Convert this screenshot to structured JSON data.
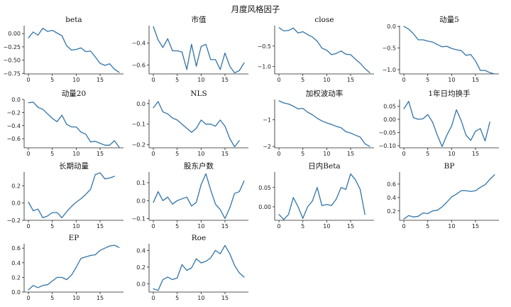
{
  "figure": {
    "title": "月度风格因子",
    "line_color": "#3274a8"
  },
  "chart_data": [
    {
      "type": "line",
      "title": "beta",
      "x": [
        0,
        1,
        2,
        3,
        4,
        5,
        6,
        7,
        8,
        9,
        10,
        11,
        12,
        13,
        14,
        15,
        16,
        17,
        18,
        19
      ],
      "values": [
        -0.08,
        0.03,
        -0.03,
        0.1,
        0.04,
        0.06,
        0.01,
        -0.04,
        -0.23,
        -0.31,
        -0.3,
        -0.27,
        -0.34,
        -0.33,
        -0.44,
        -0.56,
        -0.6,
        -0.57,
        -0.67,
        -0.73
      ],
      "ylim": [
        -0.76,
        0.15
      ],
      "yticks": [
        -0.75,
        -0.5,
        -0.25,
        0.0
      ],
      "ytick_labels": [
        "−0.75",
        "−0.50",
        "−0.25",
        "0.00"
      ],
      "xticks": [
        0,
        5,
        10,
        15
      ]
    },
    {
      "type": "line",
      "title": "市值",
      "x": [
        0,
        1,
        2,
        3,
        4,
        5,
        6,
        7,
        8,
        9,
        10,
        11,
        12,
        13,
        14,
        15,
        16,
        17,
        18,
        19
      ],
      "values": [
        -0.25,
        -0.37,
        -0.44,
        -0.36,
        -0.47,
        -0.47,
        -0.48,
        -0.64,
        -0.41,
        -0.61,
        -0.43,
        -0.41,
        -0.55,
        -0.55,
        -0.64,
        -0.49,
        -0.61,
        -0.67,
        -0.65,
        -0.58
      ],
      "ylim": [
        -0.68,
        -0.24
      ],
      "yticks": [
        -0.6,
        -0.4
      ],
      "ytick_labels": [
        "−0.6",
        "−0.4"
      ],
      "xticks": [
        0,
        5,
        10,
        15
      ]
    },
    {
      "type": "line",
      "title": "close",
      "x": [
        0,
        1,
        2,
        3,
        4,
        5,
        6,
        7,
        8,
        9,
        10,
        11,
        12,
        13,
        14,
        15,
        16,
        17,
        18,
        19
      ],
      "values": [
        -0.05,
        -0.13,
        -0.12,
        -0.06,
        -0.18,
        -0.15,
        -0.22,
        -0.28,
        -0.38,
        -0.55,
        -0.6,
        -0.71,
        -0.68,
        -0.62,
        -0.7,
        -0.71,
        -0.82,
        -0.92,
        -1.05,
        -1.15
      ],
      "ylim": [
        -1.18,
        0.0
      ],
      "yticks": [
        -1.0,
        -0.5
      ],
      "ytick_labels": [
        "−1.0",
        "−0.5"
      ],
      "xticks": [
        0,
        5,
        10,
        15
      ]
    },
    {
      "type": "line",
      "title": "动量5",
      "x": [
        0,
        1,
        2,
        3,
        4,
        5,
        6,
        7,
        8,
        9,
        10,
        11,
        12,
        13,
        14,
        15,
        16,
        17,
        18,
        19
      ],
      "values": [
        0.0,
        -0.06,
        -0.17,
        -0.31,
        -0.31,
        -0.34,
        -0.36,
        -0.42,
        -0.47,
        -0.46,
        -0.51,
        -0.54,
        -0.56,
        -0.67,
        -0.65,
        -0.8,
        -1.02,
        -1.02,
        -1.07,
        -1.1
      ],
      "ylim": [
        -1.1,
        0.02
      ],
      "yticks": [
        -1.0,
        -0.5,
        0.0
      ],
      "ytick_labels": [
        "−1.0",
        "−0.5",
        "0.0"
      ],
      "xticks": [
        0,
        5,
        10,
        15
      ]
    },
    {
      "type": "line",
      "title": "动量20",
      "x": [
        0,
        1,
        2,
        3,
        4,
        5,
        6,
        7,
        8,
        9,
        10,
        11,
        12,
        13,
        14,
        15,
        16,
        17,
        18,
        19
      ],
      "values": [
        -0.05,
        -0.04,
        -0.12,
        -0.15,
        -0.22,
        -0.29,
        -0.34,
        -0.24,
        -0.38,
        -0.42,
        -0.42,
        -0.5,
        -0.53,
        -0.65,
        -0.64,
        -0.67,
        -0.7,
        -0.7,
        -0.63,
        -0.73
      ],
      "ylim": [
        -0.74,
        0.0
      ],
      "yticks": [
        -0.6,
        -0.4,
        -0.2,
        0.0
      ],
      "ytick_labels": [
        "−0.6",
        "−0.4",
        "−0.2",
        "0.0"
      ],
      "xticks": [
        0,
        5,
        10,
        15
      ]
    },
    {
      "type": "line",
      "title": "NLS",
      "x": [
        0,
        1,
        2,
        3,
        4,
        5,
        6,
        7,
        8,
        9,
        10,
        11,
        12,
        13,
        14,
        15,
        16,
        17,
        18,
        19
      ],
      "values": [
        -0.02,
        0.01,
        -0.04,
        -0.05,
        -0.07,
        -0.08,
        -0.1,
        -0.12,
        -0.14,
        -0.12,
        -0.08,
        -0.1,
        -0.1,
        -0.11,
        -0.08,
        -0.11,
        -0.17,
        -0.21,
        -0.18,
        null
      ],
      "ylim": [
        -0.215,
        0.02
      ],
      "yticks": [
        -0.2,
        -0.1,
        0.0
      ],
      "ytick_labels": [
        "−0.2",
        "−0.1",
        "0.0"
      ],
      "xticks": [
        0,
        5,
        10,
        15
      ]
    },
    {
      "type": "line",
      "title": "加权波动率",
      "x": [
        0,
        1,
        2,
        3,
        4,
        5,
        6,
        7,
        8,
        9,
        10,
        11,
        12,
        13,
        14,
        15,
        16,
        17,
        18,
        19
      ],
      "values": [
        -0.3,
        -0.38,
        -0.42,
        -0.5,
        -0.6,
        -0.58,
        -0.72,
        -0.82,
        -0.95,
        -1.05,
        -1.12,
        -1.18,
        -1.25,
        -1.3,
        -1.45,
        -1.5,
        -1.58,
        -1.65,
        -1.9,
        -2.0
      ],
      "ylim": [
        -2.05,
        -0.25
      ],
      "yticks": [
        -2.0,
        -1.0
      ],
      "ytick_labels": [
        "−2",
        "−1"
      ],
      "xticks": [
        0,
        5,
        10,
        15
      ]
    },
    {
      "type": "line",
      "title": "1年日均换手",
      "x": [
        0,
        1,
        2,
        3,
        4,
        5,
        6,
        7,
        8,
        9,
        10,
        11,
        12,
        13,
        14,
        15,
        16,
        17,
        18,
        19
      ],
      "values": [
        0.04,
        0.068,
        0.006,
        0.0,
        0.002,
        0.018,
        -0.01,
        -0.06,
        -0.103,
        -0.06,
        -0.025,
        0.036,
        -0.005,
        -0.06,
        -0.08,
        -0.045,
        -0.035,
        -0.082,
        -0.01,
        null
      ],
      "ylim": [
        -0.108,
        0.075
      ],
      "yticks": [
        -0.1,
        -0.05,
        0.0,
        0.05
      ],
      "ytick_labels": [
        "−0.10",
        "−0.05",
        "0.00",
        "0.05"
      ],
      "xticks": [
        0,
        5,
        10,
        15
      ]
    },
    {
      "type": "line",
      "title": "长期动量",
      "x": [
        0,
        1,
        2,
        3,
        4,
        5,
        6,
        7,
        8,
        9,
        10,
        11,
        12,
        13,
        14,
        15,
        16,
        17,
        18,
        19
      ],
      "values": [
        0.01,
        -0.09,
        -0.07,
        -0.17,
        -0.15,
        -0.11,
        -0.11,
        -0.17,
        -0.1,
        -0.04,
        0.01,
        0.05,
        0.1,
        0.16,
        0.33,
        0.35,
        0.28,
        0.29,
        0.31,
        null
      ],
      "ylim": [
        -0.2,
        0.36
      ],
      "yticks": [
        -0.2,
        0.0,
        0.2
      ],
      "ytick_labels": [
        "−0.2",
        "0.0",
        "0.2"
      ],
      "xticks": [
        0,
        5,
        10,
        15
      ]
    },
    {
      "type": "line",
      "title": "股东户数",
      "x": [
        0,
        1,
        2,
        3,
        4,
        5,
        6,
        7,
        8,
        9,
        10,
        11,
        12,
        13,
        14,
        15,
        16,
        17,
        18,
        19
      ],
      "values": [
        -0.01,
        0.05,
        0.0,
        0.02,
        -0.02,
        0.0,
        0.01,
        0.02,
        -0.03,
        -0.01,
        0.09,
        0.15,
        0.06,
        -0.02,
        -0.05,
        -0.1,
        -0.04,
        0.04,
        0.05,
        0.11
      ],
      "ylim": [
        -0.11,
        0.16
      ],
      "yticks": [
        -0.1,
        0.0,
        0.1
      ],
      "ytick_labels": [
        "−0.1",
        "0.0",
        "0.1"
      ],
      "xticks": [
        0,
        5,
        10,
        15
      ]
    },
    {
      "type": "line",
      "title": "日内Beta",
      "x": [
        0,
        1,
        2,
        3,
        4,
        5,
        6,
        7,
        8,
        9,
        10,
        11,
        12,
        13,
        14,
        15,
        16,
        17,
        18,
        19
      ],
      "values": [
        -0.02,
        -0.033,
        -0.02,
        0.024,
        0.0,
        -0.03,
        0.0,
        0.015,
        0.05,
        0.003,
        0.006,
        0.003,
        0.02,
        0.05,
        0.045,
        0.085,
        0.07,
        0.045,
        -0.02,
        null
      ],
      "ylim": [
        -0.035,
        0.09
      ],
      "yticks": [
        0.0,
        0.05
      ],
      "ytick_labels": [
        "0.00",
        "0.05"
      ],
      "xticks": [
        0,
        5,
        10,
        15
      ]
    },
    {
      "type": "line",
      "title": "BP",
      "x": [
        0,
        1,
        2,
        3,
        4,
        5,
        6,
        7,
        8,
        9,
        10,
        11,
        12,
        13,
        14,
        15,
        16,
        17,
        18,
        19
      ],
      "values": [
        0.08,
        0.13,
        0.11,
        0.12,
        0.17,
        0.16,
        0.2,
        0.21,
        0.26,
        0.33,
        0.41,
        0.45,
        0.5,
        0.5,
        0.49,
        0.5,
        0.55,
        0.59,
        0.67,
        0.74
      ],
      "ylim": [
        0.06,
        0.78
      ],
      "yticks": [
        0.2,
        0.4,
        0.6
      ],
      "ytick_labels": [
        "0.2",
        "0.4",
        "0.6"
      ],
      "xticks": [
        0,
        5,
        10,
        15
      ]
    },
    {
      "type": "line",
      "title": "EP",
      "x": [
        0,
        1,
        2,
        3,
        4,
        5,
        6,
        7,
        8,
        9,
        10,
        11,
        12,
        13,
        14,
        15,
        16,
        17,
        18,
        19
      ],
      "values": [
        0.03,
        0.09,
        0.06,
        0.09,
        0.1,
        0.15,
        0.2,
        0.2,
        0.17,
        0.23,
        0.34,
        0.46,
        0.48,
        0.5,
        0.51,
        0.57,
        0.6,
        0.63,
        0.64,
        0.61
      ],
      "ylim": [
        0.0,
        0.66
      ],
      "yticks": [
        0.0,
        0.2,
        0.4,
        0.6
      ],
      "ytick_labels": [
        "0.0",
        "0.2",
        "0.4",
        "0.6"
      ],
      "xticks": [
        0,
        5,
        10,
        15
      ]
    },
    {
      "type": "line",
      "title": "Roe",
      "x": [
        0,
        1,
        2,
        3,
        4,
        5,
        6,
        7,
        8,
        9,
        10,
        11,
        12,
        13,
        14,
        15,
        16,
        17,
        18,
        19
      ],
      "values": [
        -0.06,
        -0.08,
        0.05,
        0.08,
        0.05,
        0.07,
        0.23,
        0.16,
        0.19,
        0.3,
        0.25,
        0.27,
        0.31,
        0.4,
        0.36,
        0.46,
        0.36,
        0.22,
        0.13,
        0.08
      ],
      "ylim": [
        -0.1,
        0.48
      ],
      "yticks": [
        0.0,
        0.2,
        0.4
      ],
      "ytick_labels": [
        "0.0",
        "0.2",
        "0.4"
      ],
      "xticks": [
        0,
        5,
        10,
        15
      ]
    }
  ]
}
